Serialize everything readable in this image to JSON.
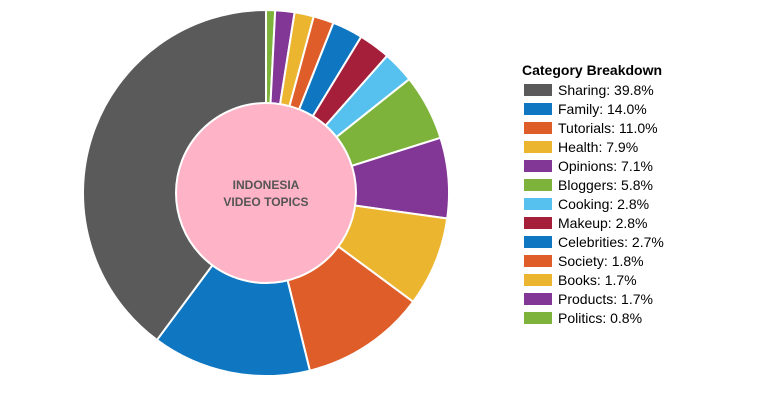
{
  "chart_data": {
    "type": "pie",
    "variant": "donut",
    "center_label_lines": [
      "INDONESIA",
      "VIDEO TOPICS"
    ],
    "center_fill": "#ffb3c6",
    "slice_border_color": "#ffffff",
    "legend": {
      "title": "Category Breakdown",
      "placement": "right"
    },
    "slices": [
      {
        "name": "Sharing",
        "value": 39.8,
        "label": "Sharing: 39.8%",
        "color": "#5a5a5a"
      },
      {
        "name": "Family",
        "value": 14.0,
        "label": "Family: 14.0%",
        "color": "#0f77c2"
      },
      {
        "name": "Tutorials",
        "value": 11.0,
        "label": "Tutorials: 11.0%",
        "color": "#de5d28"
      },
      {
        "name": "Health",
        "value": 7.9,
        "label": "Health: 7.9%",
        "color": "#ebb530"
      },
      {
        "name": "Opinions",
        "value": 7.1,
        "label": "Opinions: 7.1%",
        "color": "#823796"
      },
      {
        "name": "Bloggers",
        "value": 5.8,
        "label": "Bloggers: 5.8%",
        "color": "#7db33a"
      },
      {
        "name": "Cooking",
        "value": 2.8,
        "label": "Cooking: 2.8%",
        "color": "#56c0ee"
      },
      {
        "name": "Makeup",
        "value": 2.8,
        "label": "Makeup: 2.8%",
        "color": "#a51e3a"
      },
      {
        "name": "Celebrities",
        "value": 2.7,
        "label": "Celebrities: 2.7%",
        "color": "#0f77c2"
      },
      {
        "name": "Society",
        "value": 1.8,
        "label": "Society: 1.8%",
        "color": "#de5d28"
      },
      {
        "name": "Books",
        "value": 1.7,
        "label": "Books: 1.7%",
        "color": "#ebb530"
      },
      {
        "name": "Products",
        "value": 1.7,
        "label": "Products: 1.7%",
        "color": "#823796"
      },
      {
        "name": "Politics",
        "value": 0.8,
        "label": "Politics: 0.8%",
        "color": "#7db33a"
      }
    ]
  }
}
